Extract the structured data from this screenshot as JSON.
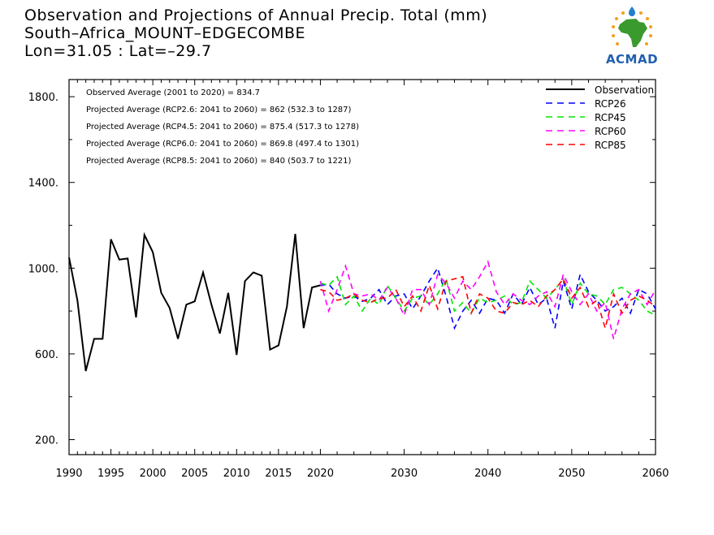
{
  "title": {
    "line1": "Observation and Projections of Annual Precip. Total (mm)",
    "line2": "South–Africa_MOUNT–EDGECOMBE",
    "line3": "Lon=31.05 : Lat=–29.7"
  },
  "logo": {
    "text": "ACMAD"
  },
  "annotations": [
    "Observed Average (2001 to 2020) = 834.7",
    "Projected Average (RCP2.6: 2041 to 2060) = 862 (532.3 to 1287)",
    "Projected Average (RCP4.5: 2041 to 2060) = 875.4 (517.3 to 1278)",
    "Projected Average (RCP6.0: 2041 to 2060) = 869.8 (497.4 to 1301)",
    "Projected Average (RCP8.5: 2041 to 2060) = 840 (503.7 to 1221)"
  ],
  "chart_data": {
    "type": "line",
    "xlim": [
      1990,
      2060
    ],
    "ylim": [
      130,
      1880
    ],
    "y_ticks": [
      {
        "value": 200,
        "label": "200."
      },
      {
        "value": 600,
        "label": "600."
      },
      {
        "value": 1000,
        "label": "1000."
      },
      {
        "value": 1400,
        "label": "1400."
      },
      {
        "value": 1800,
        "label": "1800."
      }
    ],
    "y_minor_ticks": [
      400,
      800,
      1200,
      1600
    ],
    "x_ticks": [
      {
        "value": 1990,
        "label": "1990"
      },
      {
        "value": 1995,
        "label": "1995"
      },
      {
        "value": 2000,
        "label": "2000"
      },
      {
        "value": 2005,
        "label": "2005"
      },
      {
        "value": 2010,
        "label": "2010"
      },
      {
        "value": 2015,
        "label": "2015"
      },
      {
        "value": 2020,
        "label": "2020"
      },
      {
        "value": 2030,
        "label": "2030"
      },
      {
        "value": 2040,
        "label": "2040"
      },
      {
        "value": 2050,
        "label": "2050"
      },
      {
        "value": 2060,
        "label": "2060"
      }
    ],
    "legend_position": "top-right",
    "series": [
      {
        "name": "Observation",
        "color": "#000000",
        "dash": "solid",
        "x": [
          1990,
          1991,
          1992,
          1993,
          1994,
          1995,
          1996,
          1997,
          1998,
          1999,
          2000,
          2001,
          2002,
          2003,
          2004,
          2005,
          2006,
          2007,
          2008,
          2009,
          2010,
          2011,
          2012,
          2013,
          2014,
          2015,
          2016,
          2017,
          2018,
          2019,
          2020
        ],
        "y": [
          1050,
          850,
          520,
          670,
          670,
          1135,
          1040,
          1045,
          770,
          1155,
          1075,
          885,
          815,
          670,
          830,
          845,
          980,
          830,
          695,
          885,
          595,
          940,
          980,
          965,
          620,
          640,
          820,
          1160,
          720,
          910,
          920
        ]
      },
      {
        "name": "RCP26",
        "color": "#0000ff",
        "dash": "dashed",
        "x": [
          2020,
          2021,
          2022,
          2023,
          2024,
          2025,
          2026,
          2027,
          2028,
          2029,
          2030,
          2031,
          2032,
          2033,
          2034,
          2035,
          2036,
          2037,
          2038,
          2039,
          2040,
          2041,
          2042,
          2043,
          2044,
          2045,
          2046,
          2047,
          2048,
          2049,
          2050,
          2051,
          2052,
          2053,
          2054,
          2055,
          2056,
          2057,
          2058,
          2059,
          2060
        ],
        "y": [
          920,
          925,
          880,
          860,
          870,
          845,
          860,
          900,
          830,
          870,
          880,
          810,
          870,
          940,
          1000,
          870,
          720,
          800,
          850,
          790,
          860,
          850,
          790,
          880,
          830,
          910,
          830,
          860,
          720,
          940,
          810,
          970,
          890,
          850,
          800,
          820,
          860,
          790,
          900,
          880,
          810
        ]
      },
      {
        "name": "RCP45",
        "color": "#00e600",
        "dash": "dashed",
        "x": [
          2020,
          2021,
          2022,
          2023,
          2024,
          2025,
          2026,
          2027,
          2028,
          2029,
          2030,
          2031,
          2032,
          2033,
          2034,
          2035,
          2036,
          2037,
          2038,
          2039,
          2040,
          2041,
          2042,
          2043,
          2044,
          2045,
          2046,
          2047,
          2048,
          2049,
          2050,
          2051,
          2052,
          2053,
          2054,
          2055,
          2056,
          2057,
          2058,
          2059,
          2060
        ],
        "y": [
          930,
          920,
          960,
          830,
          870,
          800,
          860,
          830,
          920,
          860,
          800,
          860,
          870,
          830,
          880,
          950,
          800,
          840,
          790,
          860,
          840,
          850,
          870,
          830,
          840,
          940,
          900,
          860,
          900,
          950,
          830,
          930,
          880,
          870,
          830,
          900,
          910,
          880,
          850,
          800,
          780
        ]
      },
      {
        "name": "RCP60",
        "color": "#ff00ff",
        "dash": "dashed",
        "x": [
          2020,
          2021,
          2022,
          2023,
          2024,
          2025,
          2026,
          2027,
          2028,
          2029,
          2030,
          2031,
          2032,
          2033,
          2034,
          2035,
          2036,
          2037,
          2038,
          2039,
          2040,
          2041,
          2042,
          2043,
          2044,
          2045,
          2046,
          2047,
          2048,
          2049,
          2050,
          2051,
          2052,
          2053,
          2054,
          2055,
          2056,
          2057,
          2058,
          2059,
          2060
        ],
        "y": [
          940,
          800,
          900,
          1010,
          880,
          870,
          880,
          850,
          910,
          860,
          780,
          900,
          900,
          830,
          970,
          930,
          860,
          940,
          900,
          960,
          1030,
          890,
          830,
          880,
          850,
          830,
          870,
          890,
          820,
          970,
          890,
          830,
          880,
          800,
          840,
          670,
          810,
          880,
          900,
          830,
          900
        ]
      },
      {
        "name": "RCP85",
        "color": "#ff0000",
        "dash": "dashed",
        "x": [
          2020,
          2021,
          2022,
          2023,
          2024,
          2025,
          2026,
          2027,
          2028,
          2029,
          2030,
          2031,
          2032,
          2033,
          2034,
          2035,
          2036,
          2037,
          2038,
          2039,
          2040,
          2041,
          2042,
          2043,
          2044,
          2045,
          2046,
          2047,
          2048,
          2049,
          2050,
          2051,
          2052,
          2053,
          2054,
          2055,
          2056,
          2057,
          2058,
          2059,
          2060
        ],
        "y": [
          900,
          890,
          850,
          860,
          880,
          850,
          840,
          860,
          860,
          900,
          820,
          870,
          800,
          920,
          810,
          940,
          950,
          960,
          790,
          880,
          860,
          800,
          790,
          840,
          830,
          850,
          820,
          870,
          900,
          950,
          860,
          910,
          820,
          850,
          720,
          880,
          790,
          850,
          870,
          850,
          820
        ]
      }
    ]
  }
}
